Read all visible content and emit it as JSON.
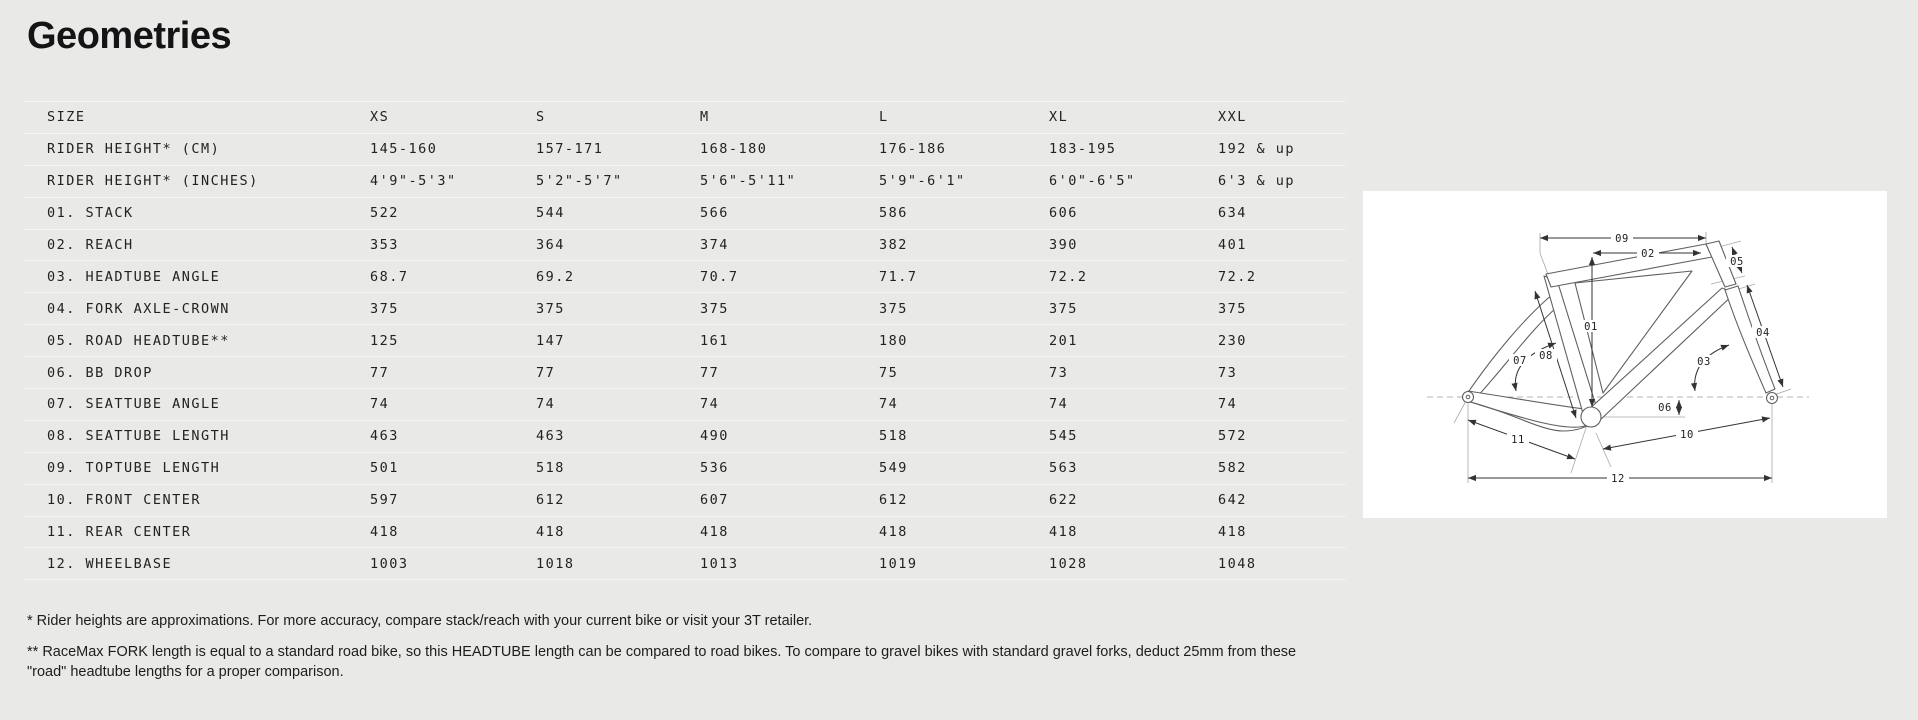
{
  "title": "Geometries",
  "table": {
    "size_label": "SIZE",
    "sizes": [
      "XS",
      "S",
      "M",
      "L",
      "XL",
      "XXL"
    ],
    "rows": [
      {
        "label": "RIDER HEIGHT* (CM)",
        "values": [
          "145-160",
          "157-171",
          "168-180",
          "176-186",
          "183-195",
          "192 & up"
        ]
      },
      {
        "label": "RIDER HEIGHT* (INCHES)",
        "values": [
          "4'9\"-5'3\"",
          "5'2\"-5'7\"",
          "5'6\"-5'11\"",
          "5'9\"-6'1\"",
          "6'0\"-6'5\"",
          "6'3 & up"
        ]
      },
      {
        "label": "01. STACK",
        "values": [
          "522",
          "544",
          "566",
          "586",
          "606",
          "634"
        ]
      },
      {
        "label": "02. REACH",
        "values": [
          "353",
          "364",
          "374",
          "382",
          "390",
          "401"
        ]
      },
      {
        "label": "03. HEADTUBE ANGLE",
        "values": [
          "68.7",
          "69.2",
          "70.7",
          "71.7",
          "72.2",
          "72.2"
        ]
      },
      {
        "label": "04. FORK AXLE-CROWN",
        "values": [
          "375",
          "375",
          "375",
          "375",
          "375",
          "375"
        ]
      },
      {
        "label": "05. ROAD HEADTUBE**",
        "values": [
          "125",
          "147",
          "161",
          "180",
          "201",
          "230"
        ]
      },
      {
        "label": "06. BB DROP",
        "values": [
          "77",
          "77",
          "77",
          "75",
          "73",
          "73"
        ]
      },
      {
        "label": "07. SEATTUBE ANGLE",
        "values": [
          "74",
          "74",
          "74",
          "74",
          "74",
          "74"
        ]
      },
      {
        "label": "08. SEATTUBE LENGTH",
        "values": [
          "463",
          "463",
          "490",
          "518",
          "545",
          "572"
        ]
      },
      {
        "label": "09. TOPTUBE LENGTH",
        "values": [
          "501",
          "518",
          "536",
          "549",
          "563",
          "582"
        ]
      },
      {
        "label": "10. FRONT CENTER",
        "values": [
          "597",
          "612",
          "607",
          "612",
          "622",
          "642"
        ]
      },
      {
        "label": "11. REAR CENTER",
        "values": [
          "418",
          "418",
          "418",
          "418",
          "418",
          "418"
        ]
      },
      {
        "label": "12. WHEELBASE",
        "values": [
          "1003",
          "1018",
          "1013",
          "1019",
          "1028",
          "1048"
        ]
      }
    ]
  },
  "footnotes": [
    "* Rider heights are approximations. For more accuracy, compare stack/reach with your current bike or visit your 3T retailer.",
    "** RaceMax FORK length is equal to a standard road bike, so this HEADTUBE length can be compared to road bikes. To compare to gravel bikes with standard gravel forks, deduct 25mm from these \"road\" headtube lengths for a proper comparison."
  ],
  "diagram": {
    "labels": {
      "d01": "01",
      "d02": "02",
      "d03": "03",
      "d04": "04",
      "d05": "05",
      "d06": "06",
      "d07": "07",
      "d08": "08",
      "d09": "09",
      "d10": "10",
      "d11": "11",
      "d12": "12"
    }
  },
  "colors": {
    "background": "#e9e9e7",
    "text": "#1d1d1d",
    "divider": "#f4f4f2",
    "diagram_background": "#ffffff",
    "line": "#333333"
  }
}
